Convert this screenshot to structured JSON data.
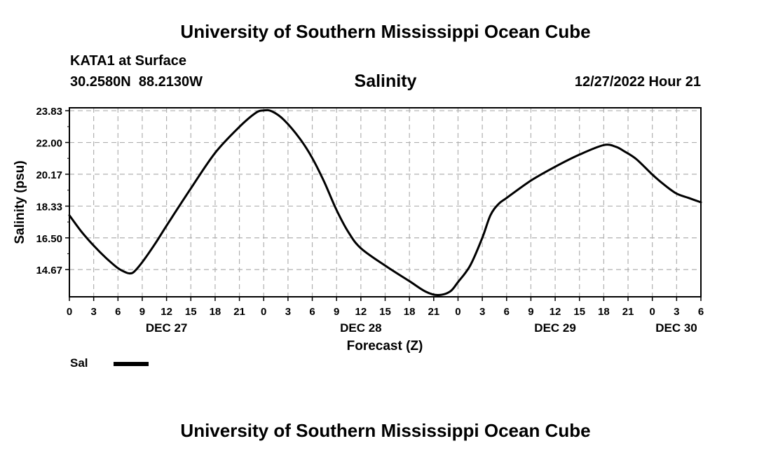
{
  "header": {
    "title": "University of Southern Mississippi Ocean Cube",
    "station": "KATA1 at Surface",
    "coords": "30.2580N  88.2130W",
    "chart_title": "Salinity",
    "timestamp": "12/27/2022 Hour 21"
  },
  "footer": {
    "title": "University of Southern Mississippi Ocean Cube"
  },
  "legend": {
    "label": "Sal",
    "color": "#000000"
  },
  "chart_data": {
    "type": "line",
    "title": "Salinity",
    "xlabel": "Forecast (Z)",
    "ylabel": "Salinity (psu)",
    "xlim": [
      0,
      78
    ],
    "ylim": [
      13.1,
      24.0
    ],
    "grid": true,
    "yticks": [
      14.67,
      16.5,
      18.33,
      20.17,
      22.0,
      23.83
    ],
    "ytick_labels": [
      "14.67",
      "16.50",
      "18.33",
      "20.17",
      "22.00",
      "23.83"
    ],
    "xticks": [
      0,
      3,
      6,
      9,
      12,
      15,
      18,
      21,
      24,
      27,
      30,
      33,
      36,
      39,
      42,
      45,
      48,
      51,
      54,
      57,
      60,
      63,
      66,
      69,
      72,
      75,
      78
    ],
    "xtick_labels": [
      "0",
      "3",
      "6",
      "9",
      "12",
      "15",
      "18",
      "21",
      "0",
      "3",
      "6",
      "9",
      "12",
      "15",
      "18",
      "21",
      "0",
      "3",
      "6",
      "9",
      "12",
      "15",
      "18",
      "21",
      "0",
      "3",
      "6"
    ],
    "date_labels": [
      {
        "hour": 12,
        "label": "DEC 27"
      },
      {
        "hour": 36,
        "label": "DEC 28"
      },
      {
        "hour": 60,
        "label": "DEC 29"
      },
      {
        "hour": 78,
        "label": "DEC 30"
      }
    ],
    "series": [
      {
        "name": "Sal",
        "color": "#000000",
        "x": [
          0,
          1.5,
          3,
          4.5,
          6,
          7,
          7.5,
          8,
          9,
          10.5,
          12,
          15,
          18,
          21,
          23,
          24,
          25,
          26.5,
          28.5,
          30,
          31.5,
          33,
          34.5,
          36,
          39,
          42,
          44,
          45.5,
          47,
          48,
          49.5,
          51,
          52,
          53,
          54,
          57,
          60,
          63,
          66,
          67.5,
          68.5,
          70,
          72,
          73.5,
          75,
          76.5,
          78
        ],
        "values": [
          17.8,
          16.85,
          16.05,
          15.35,
          14.75,
          14.5,
          14.45,
          14.55,
          15.1,
          16.1,
          17.2,
          19.35,
          21.4,
          22.9,
          23.7,
          23.85,
          23.8,
          23.3,
          22.2,
          21.1,
          19.7,
          18.1,
          16.8,
          15.9,
          14.9,
          14.0,
          13.4,
          13.2,
          13.4,
          13.95,
          14.9,
          16.5,
          17.8,
          18.45,
          18.8,
          19.8,
          20.6,
          21.3,
          21.85,
          21.75,
          21.5,
          21.05,
          20.15,
          19.55,
          19.05,
          18.8,
          18.55
        ]
      }
    ]
  }
}
